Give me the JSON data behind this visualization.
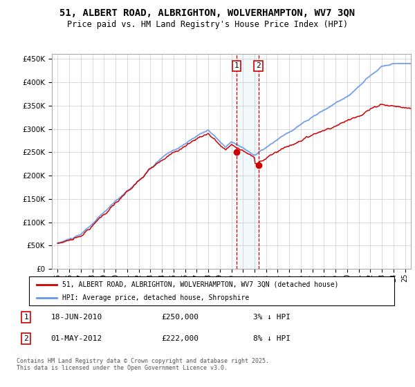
{
  "title": "51, ALBERT ROAD, ALBRIGHTON, WOLVERHAMPTON, WV7 3QN",
  "subtitle": "Price paid vs. HM Land Registry's House Price Index (HPI)",
  "ylabel_ticks": [
    "£0",
    "£50K",
    "£100K",
    "£150K",
    "£200K",
    "£250K",
    "£300K",
    "£350K",
    "£400K",
    "£450K"
  ],
  "ytick_values": [
    0,
    50000,
    100000,
    150000,
    200000,
    250000,
    300000,
    350000,
    400000,
    450000
  ],
  "xlim_start": 1994.5,
  "xlim_end": 2025.5,
  "ylim": [
    0,
    460000
  ],
  "transaction1": {
    "date_num": 2010.46,
    "price": 250000,
    "label": "1"
  },
  "transaction2": {
    "date_num": 2012.33,
    "price": 222000,
    "label": "2"
  },
  "legend_line1": "51, ALBERT ROAD, ALBRIGHTON, WOLVERHAMPTON, WV7 3QN (detached house)",
  "legend_line2": "HPI: Average price, detached house, Shropshire",
  "table_row1": [
    "1",
    "18-JUN-2010",
    "£250,000",
    "3% ↓ HPI"
  ],
  "table_row2": [
    "2",
    "01-MAY-2012",
    "£222,000",
    "8% ↓ HPI"
  ],
  "footer": "Contains HM Land Registry data © Crown copyright and database right 2025.\nThis data is licensed under the Open Government Licence v3.0.",
  "hpi_color": "#6495ED",
  "price_color": "#CC0000",
  "marker_color": "#CC0000",
  "shade_color": "#ADD8E6",
  "background_color": "#FFFFFF",
  "grid_color": "#CCCCCC",
  "hpi_seed": 10,
  "prop_seed": 7
}
